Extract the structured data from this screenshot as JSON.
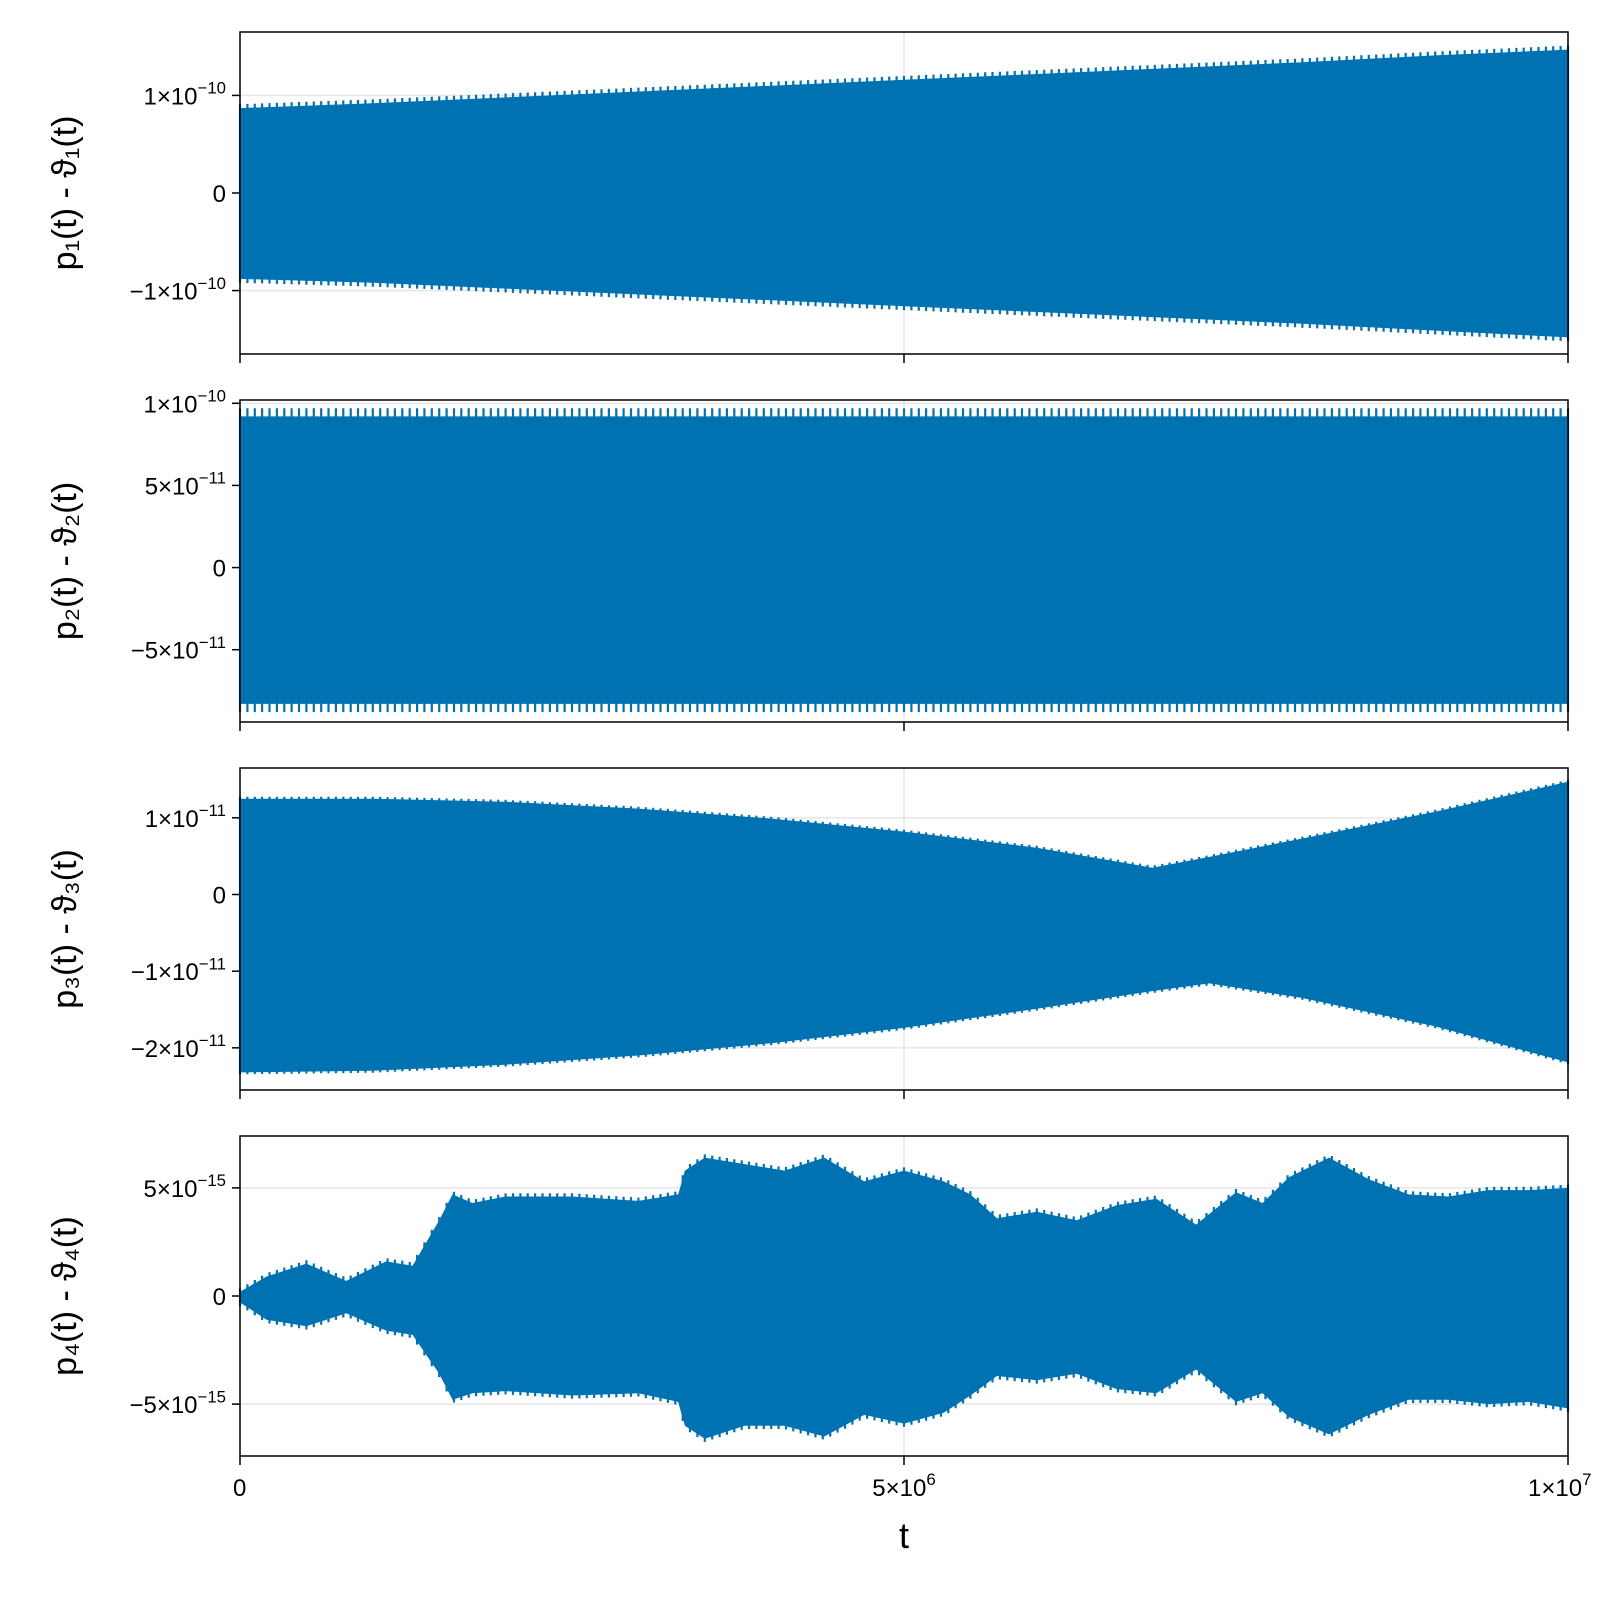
{
  "colors": {
    "series": "#0072b2",
    "grid": "#e6e6e6",
    "frame": "#000000"
  },
  "chart_data": [
    {
      "type": "area",
      "ylabel": "p₁(t) - ϑ₁(t)",
      "xlabel": "",
      "xlim": [
        0,
        10000000
      ],
      "ylim": [
        -1.65e-10,
        1.65e-10
      ],
      "grid": true,
      "yticks": [
        {
          "value": 1e-10,
          "mantissa": "1×10",
          "exp": "−10"
        },
        {
          "value": 0,
          "mantissa": "0",
          "exp": ""
        },
        {
          "value": -1e-10,
          "mantissa": "−1×10",
          "exp": "−10"
        }
      ],
      "xticks": [],
      "series": [
        {
          "x": [
            0,
            1000000,
            2000000,
            3000000,
            4000000,
            5000000,
            6000000,
            7000000,
            8000000,
            9000000,
            10000000
          ],
          "upper": [
            8.7e-11,
            9.2e-11,
            9.8e-11,
            1.04e-10,
            1.1e-10,
            1.16e-10,
            1.22e-10,
            1.28e-10,
            1.34e-10,
            1.41e-10,
            1.47e-10
          ],
          "lower": [
            -8.8e-11,
            -9.2e-11,
            -9.8e-11,
            -1.04e-10,
            -1.1e-10,
            -1.16e-10,
            -1.22e-10,
            -1.28e-10,
            -1.34e-10,
            -1.41e-10,
            -1.48e-10
          ],
          "ripple": 8e-12
        }
      ]
    },
    {
      "type": "area",
      "ylabel": "p₂(t) - ϑ₂(t)",
      "xlabel": "",
      "xlim": [
        0,
        10000000
      ],
      "ylim": [
        -9.4e-11,
        1.02e-10
      ],
      "grid": true,
      "yticks": [
        {
          "value": 1e-10,
          "mantissa": "1×10",
          "exp": "−10"
        },
        {
          "value": 5e-11,
          "mantissa": "5×10",
          "exp": "−11"
        },
        {
          "value": 0,
          "mantissa": "0",
          "exp": ""
        },
        {
          "value": -5e-11,
          "mantissa": "−5×10",
          "exp": "−11"
        }
      ],
      "xticks": [],
      "series": [
        {
          "x": [
            0,
            10000000
          ],
          "upper": [
            9.2e-11,
            9.2e-11
          ],
          "lower": [
            -8.3e-11,
            -8.3e-11
          ],
          "ripple": 1e-11
        }
      ]
    },
    {
      "type": "area",
      "ylabel": "p₃(t) - ϑ₃(t)",
      "xlabel": "",
      "xlim": [
        0,
        10000000
      ],
      "ylim": [
        -2.55e-11,
        1.65e-11
      ],
      "grid": true,
      "yticks": [
        {
          "value": 1e-11,
          "mantissa": "1×10",
          "exp": "−11"
        },
        {
          "value": 0,
          "mantissa": "0",
          "exp": ""
        },
        {
          "value": -1e-11,
          "mantissa": "−1×10",
          "exp": "−11"
        },
        {
          "value": -2e-11,
          "mantissa": "−2×10",
          "exp": "−11"
        }
      ],
      "xticks": [],
      "series": [
        {
          "x": [
            0,
            1000000,
            2000000,
            3000000,
            4000000,
            5000000,
            6000000,
            6870000,
            7300000,
            8000000,
            9000000,
            10000000
          ],
          "upper": [
            1.25e-11,
            1.25e-11,
            1.21e-11,
            1.12e-11,
            9.9e-12,
            8.2e-12,
            6.1e-12,
            3.5e-12,
            4.9e-12,
            7.3e-12,
            1.08e-11,
            1.47e-11
          ],
          "lower": [
            -2.32e-11,
            -2.3e-11,
            -2.22e-11,
            -2.1e-11,
            -1.94e-11,
            -1.74e-11,
            -1.49e-11,
            -1.26e-11,
            -1.16e-11,
            -1.35e-11,
            -1.72e-11,
            -2.19e-11
          ],
          "ripple": 5e-13
        }
      ]
    },
    {
      "type": "area",
      "ylabel": "p₄(t) - ϑ₄(t)",
      "xlabel": "t",
      "xlim": [
        0,
        10000000
      ],
      "ylim": [
        -7.4e-15,
        7.4e-15
      ],
      "grid": true,
      "yticks": [
        {
          "value": 5e-15,
          "mantissa": "5×10",
          "exp": "−15"
        },
        {
          "value": 0,
          "mantissa": "0",
          "exp": ""
        },
        {
          "value": -5e-15,
          "mantissa": "−5×10",
          "exp": "−15"
        }
      ],
      "xticks": [
        {
          "value": 0,
          "mantissa": "0",
          "exp": ""
        },
        {
          "value": 5000000,
          "mantissa": "5×10",
          "exp": "6"
        },
        {
          "value": 10000000,
          "mantissa": "1×10",
          "exp": "7"
        }
      ],
      "series": [
        {
          "x": [
            0,
            200000,
            500000,
            800000,
            1100000,
            1300000,
            1500000,
            1600000,
            1750000,
            2000000,
            2500000,
            3000000,
            3300000,
            3350000,
            3500000,
            3800000,
            4100000,
            4400000,
            4700000,
            5000000,
            5300000,
            5500000,
            5700000,
            6000000,
            6300000,
            6600000,
            6900000,
            7200000,
            7500000,
            7700000,
            7900000,
            8200000,
            8500000,
            8800000,
            9100000,
            9400000,
            9700000,
            10000000
          ],
          "upper": [
            2e-16,
            9e-16,
            1.5e-15,
            7e-16,
            1.6e-15,
            1.4e-15,
            3.5e-15,
            4.7e-15,
            4.3e-15,
            4.6e-15,
            4.6e-15,
            4.4e-15,
            4.7e-15,
            5.8e-15,
            6.4e-15,
            6.1e-15,
            5.8e-15,
            6.4e-15,
            5.3e-15,
            5.8e-15,
            5.3e-15,
            4.7e-15,
            3.6e-15,
            3.9e-15,
            3.5e-15,
            4.2e-15,
            4.5e-15,
            3.3e-15,
            4.8e-15,
            4.3e-15,
            5.5e-15,
            6.4e-15,
            5.4e-15,
            4.7e-15,
            4.6e-15,
            4.9e-15,
            4.9e-15,
            5e-15
          ],
          "lower": [
            -3e-16,
            -1.1e-15,
            -1.4e-15,
            -8e-16,
            -1.6e-15,
            -1.8e-15,
            -3.6e-15,
            -4.8e-15,
            -4.5e-15,
            -4.4e-15,
            -4.6e-15,
            -4.5e-15,
            -4.9e-15,
            -6e-15,
            -6.6e-15,
            -6e-15,
            -6e-15,
            -6.5e-15,
            -5.5e-15,
            -5.9e-15,
            -5.4e-15,
            -4.6e-15,
            -3.7e-15,
            -3.9e-15,
            -3.6e-15,
            -4.3e-15,
            -4.5e-15,
            -3.4e-15,
            -4.9e-15,
            -4.5e-15,
            -5.6e-15,
            -6.4e-15,
            -5.5e-15,
            -4.8e-15,
            -4.8e-15,
            -5e-15,
            -4.9e-15,
            -5.2e-15
          ],
          "ripple": 3e-16
        }
      ]
    }
  ]
}
